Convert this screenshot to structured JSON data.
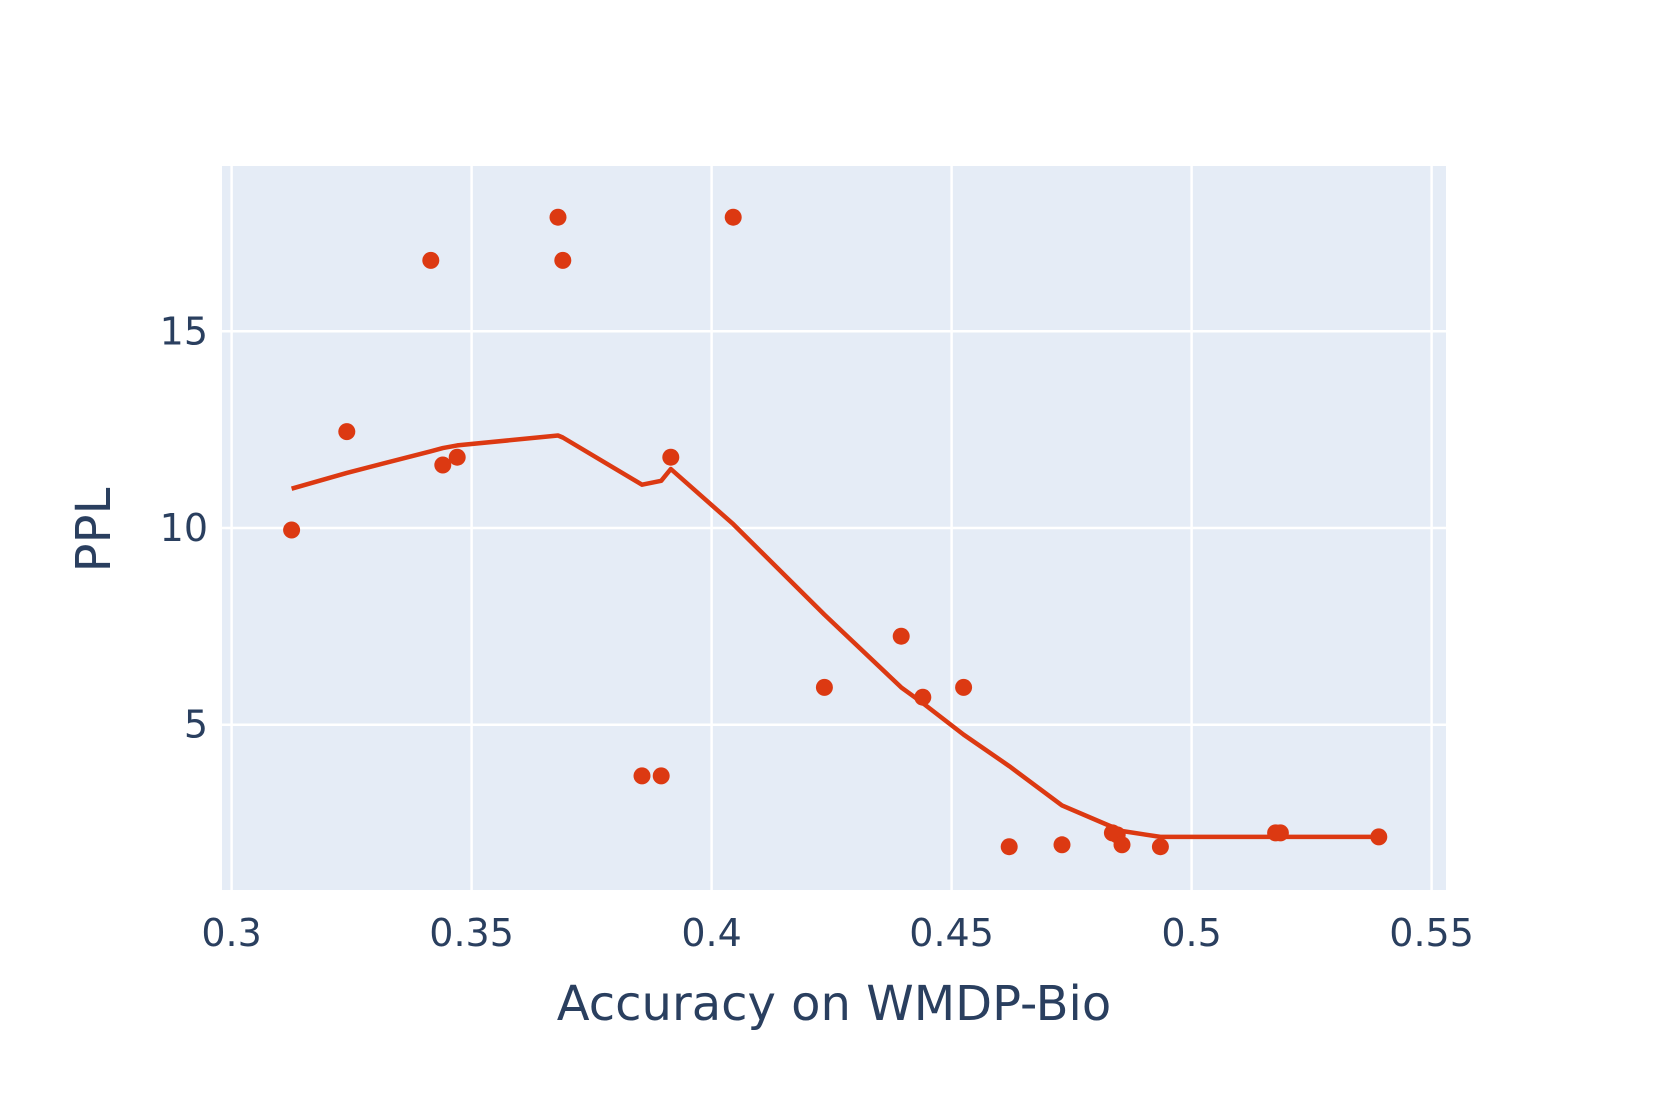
{
  "chart_data": {
    "type": "scatter",
    "xlabel": "Accuracy on WMDP-Bio",
    "ylabel": "PPL",
    "xlim": [
      0.298,
      0.553
    ],
    "ylim": [
      0.8,
      19.2
    ],
    "xticks": [
      0.3,
      0.35,
      0.4,
      0.45,
      0.5,
      0.55
    ],
    "xtick_labels": [
      "0.3",
      "0.35",
      "0.4",
      "0.45",
      "0.5",
      "0.55"
    ],
    "yticks": [
      5,
      10,
      15
    ],
    "ytick_labels": [
      "5",
      "10",
      "15"
    ],
    "grid": true,
    "legend": false,
    "colors": {
      "plot_bg": "#e5ecf6",
      "grid": "#ffffff",
      "series": "#dc3912",
      "text": "#2a3f5f"
    },
    "series": [
      {
        "mode": "markers",
        "points": [
          [
            0.3125,
            9.95
          ],
          [
            0.324,
            12.45
          ],
          [
            0.3415,
            16.8
          ],
          [
            0.344,
            11.6
          ],
          [
            0.347,
            11.8
          ],
          [
            0.368,
            17.9
          ],
          [
            0.369,
            16.8
          ],
          [
            0.3855,
            3.7
          ],
          [
            0.3895,
            3.7
          ],
          [
            0.3915,
            11.8
          ],
          [
            0.4045,
            17.9
          ],
          [
            0.4235,
            5.95
          ],
          [
            0.4395,
            7.25
          ],
          [
            0.444,
            5.7
          ],
          [
            0.4525,
            5.95
          ],
          [
            0.462,
            1.9
          ],
          [
            0.473,
            1.95
          ],
          [
            0.4835,
            2.25
          ],
          [
            0.4845,
            2.2
          ],
          [
            0.4855,
            1.95
          ],
          [
            0.4935,
            1.9
          ],
          [
            0.5175,
            2.25
          ],
          [
            0.5185,
            2.25
          ],
          [
            0.539,
            2.15
          ]
        ]
      },
      {
        "mode": "lines",
        "points": [
          [
            0.3125,
            11.0
          ],
          [
            0.324,
            11.4
          ],
          [
            0.3415,
            11.95
          ],
          [
            0.344,
            12.03
          ],
          [
            0.347,
            12.1
          ],
          [
            0.368,
            12.35
          ],
          [
            0.369,
            12.3
          ],
          [
            0.3855,
            11.1
          ],
          [
            0.3895,
            11.2
          ],
          [
            0.3915,
            11.5
          ],
          [
            0.4045,
            10.1
          ],
          [
            0.4235,
            7.8
          ],
          [
            0.4395,
            5.95
          ],
          [
            0.444,
            5.55
          ],
          [
            0.4525,
            4.75
          ],
          [
            0.462,
            3.95
          ],
          [
            0.473,
            2.95
          ],
          [
            0.4835,
            2.4
          ],
          [
            0.4845,
            2.35
          ],
          [
            0.4855,
            2.3
          ],
          [
            0.4935,
            2.15
          ],
          [
            0.5175,
            2.15
          ],
          [
            0.5185,
            2.15
          ],
          [
            0.539,
            2.15
          ]
        ]
      }
    ]
  }
}
